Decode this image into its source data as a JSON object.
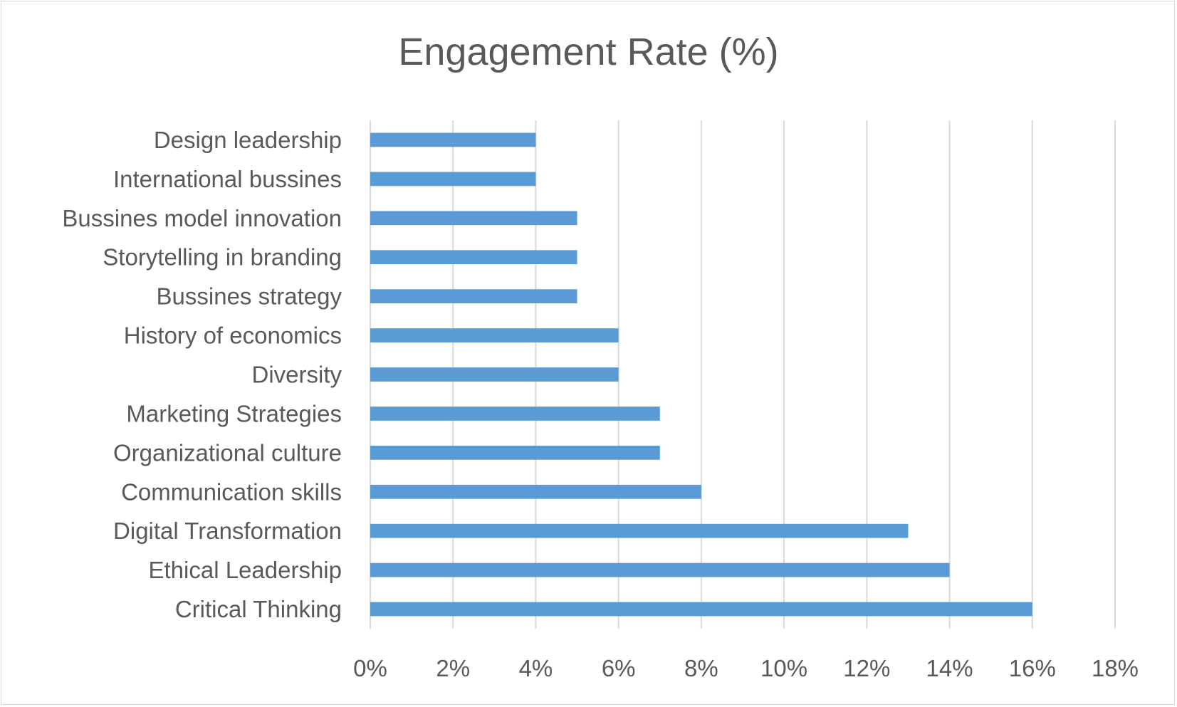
{
  "chart_data": {
    "type": "bar",
    "orientation": "horizontal",
    "title": "Engagement Rate (%)",
    "xlabel": "",
    "ylabel": "",
    "categories": [
      "Design leadership",
      "International bussines",
      "Bussines model innovation",
      "Storytelling in branding",
      "Bussines strategy",
      "History of economics",
      "Diversity",
      "Marketing Strategies",
      "Organizational culture ",
      "Communication skills",
      "Digital Transformation",
      "Ethical Leadership",
      "Critical Thinking"
    ],
    "values": [
      4,
      4,
      5,
      5,
      5,
      6,
      6,
      7,
      7,
      8,
      13,
      14,
      16
    ],
    "xlim": [
      0,
      18
    ],
    "x_ticks": [
      0,
      2,
      4,
      6,
      8,
      10,
      12,
      14,
      16,
      18
    ],
    "x_tick_labels": [
      "0%",
      "2%",
      "4%",
      "6%",
      "8%",
      "10%",
      "12%",
      "14%",
      "16%",
      "18%"
    ],
    "grid": "vertical",
    "legend": "none",
    "bar_color": "#5b9bd5"
  }
}
